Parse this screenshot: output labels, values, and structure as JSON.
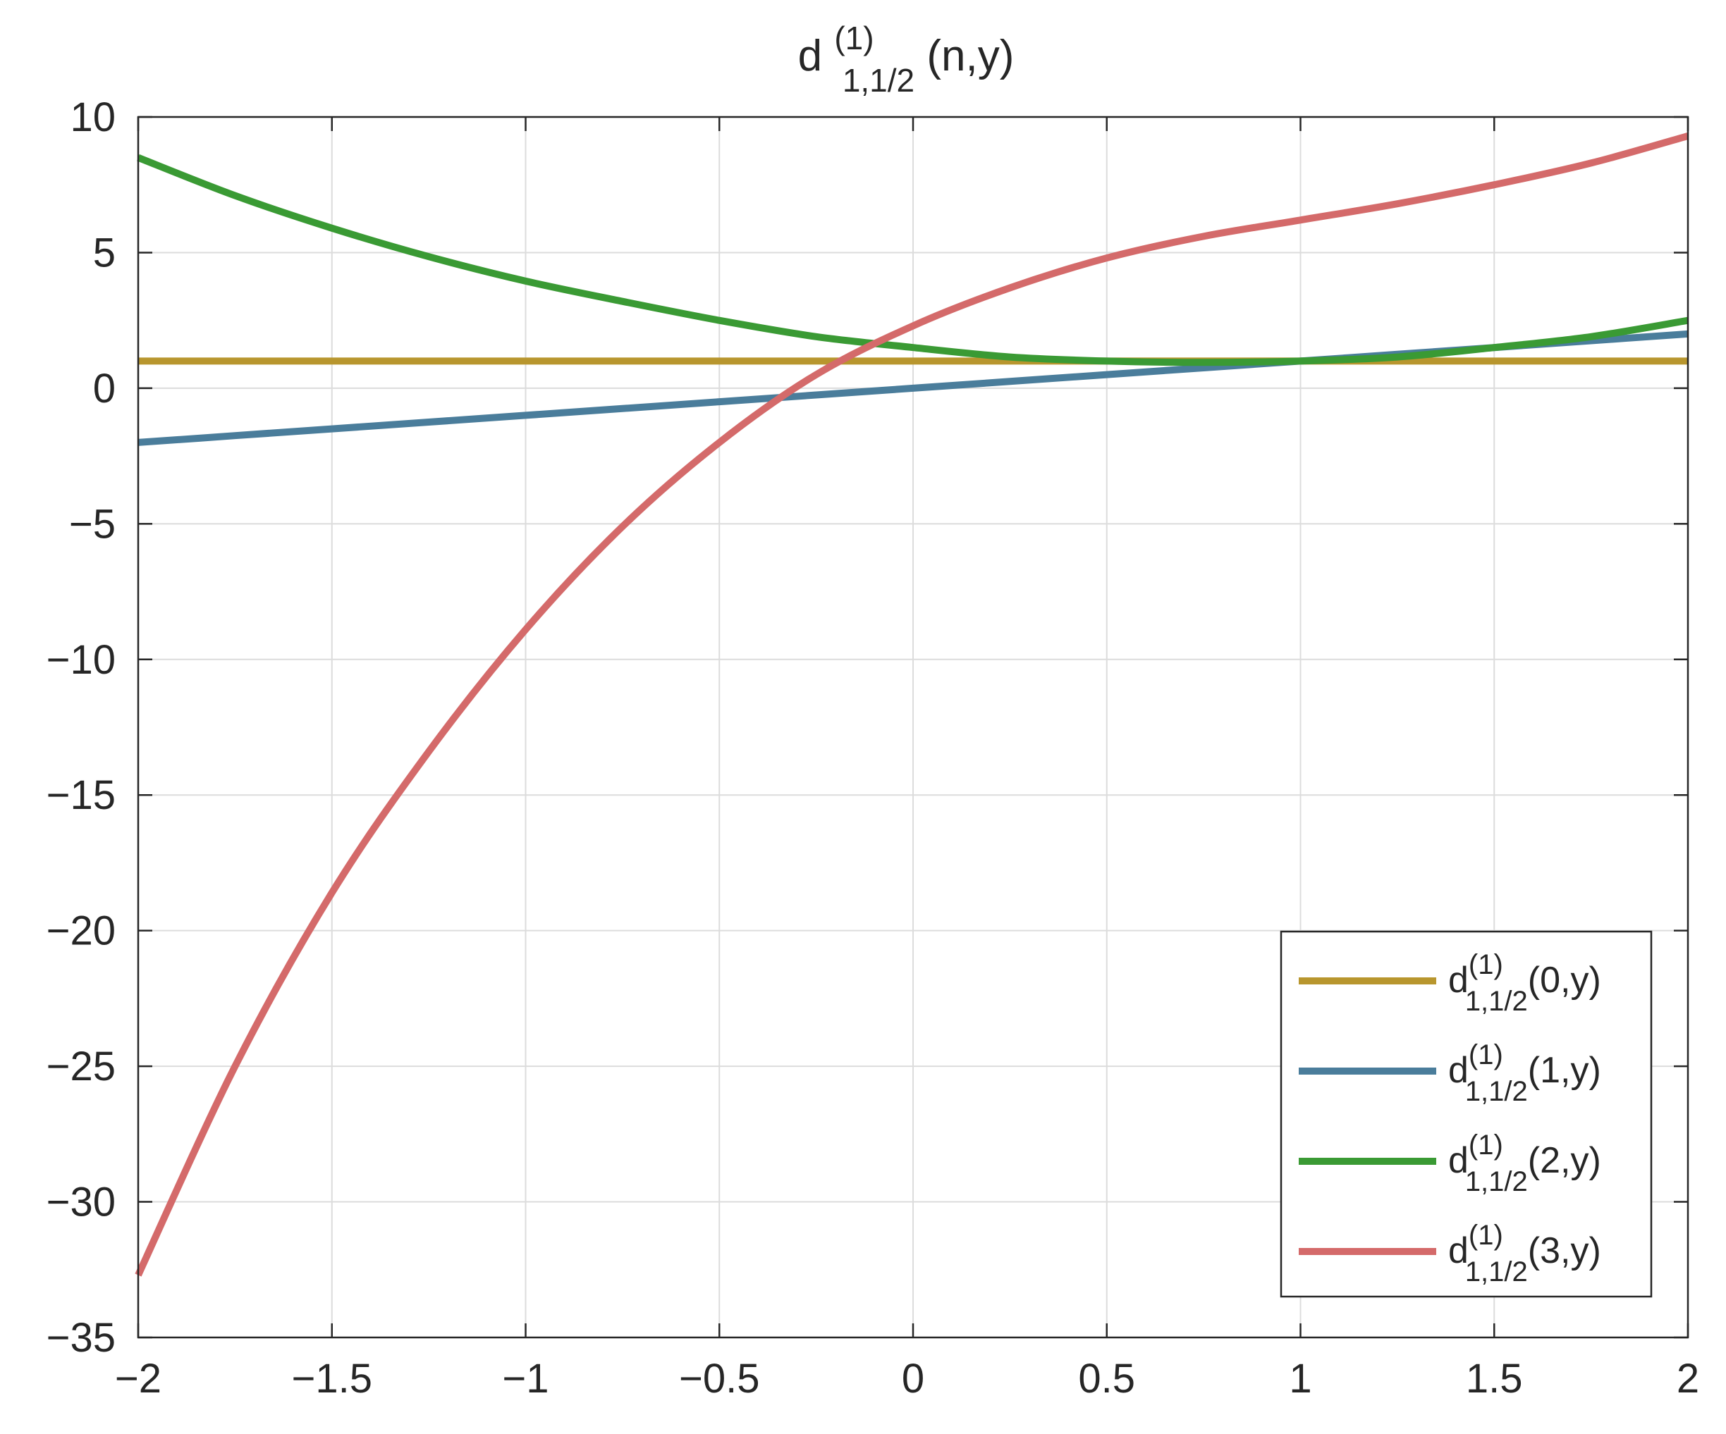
{
  "chart_data": {
    "type": "line",
    "title": {
      "base": "d",
      "superscript": "(1)",
      "subscript": "1,1/2",
      "suffix": "(n,y)"
    },
    "xlabel": "",
    "ylabel": "",
    "xlim": [
      -2,
      2
    ],
    "ylim": [
      -35,
      10
    ],
    "x_ticks": [
      -2,
      -1.5,
      -1,
      -0.5,
      0,
      0.5,
      1,
      1.5,
      2
    ],
    "x_tick_labels": [
      "−2",
      "−1.5",
      "−1",
      "−0.5",
      "0",
      "0.5",
      "1",
      "1.5",
      "2"
    ],
    "y_ticks": [
      10,
      5,
      0,
      -5,
      -10,
      -15,
      -20,
      -25,
      -30,
      -35
    ],
    "y_tick_labels": [
      "10",
      "5",
      "0",
      "−5",
      "−10",
      "−15",
      "−20",
      "−25",
      "−30",
      "−35"
    ],
    "grid": true,
    "legend_position": "bottom-right",
    "x": [
      -2,
      -1.75,
      -1.5,
      -1.25,
      -1,
      -0.75,
      -0.5,
      -0.25,
      0,
      0.25,
      0.5,
      0.75,
      1,
      1.25,
      1.5,
      1.75,
      2
    ],
    "series": [
      {
        "name": {
          "base": "d",
          "superscript": "(1)",
          "subscript": "1,1/2",
          "suffix": "(0,y)"
        },
        "color": "#b8962e",
        "values": [
          1,
          1,
          1,
          1,
          1,
          1,
          1,
          1,
          1,
          1,
          1,
          1,
          1,
          1,
          1,
          1,
          1
        ]
      },
      {
        "name": {
          "base": "d",
          "superscript": "(1)",
          "subscript": "1,1/2",
          "suffix": "(1,y)"
        },
        "color": "#4a7d9b",
        "values": [
          -2,
          -1.75,
          -1.5,
          -1.25,
          -1,
          -0.75,
          -0.5,
          -0.25,
          0,
          0.25,
          0.5,
          0.75,
          1,
          1.25,
          1.5,
          1.75,
          2
        ]
      },
      {
        "name": {
          "base": "d",
          "superscript": "(1)",
          "subscript": "1,1/2",
          "suffix": "(2,y)"
        },
        "color": "#3a9a34",
        "values": [
          8.5,
          7.1,
          5.9,
          4.85,
          3.95,
          3.2,
          2.5,
          1.9,
          1.5,
          1.15,
          1,
          0.95,
          1,
          1.15,
          1.5,
          1.9,
          2.5
        ]
      },
      {
        "name": {
          "base": "d",
          "superscript": "(1)",
          "subscript": "1,1/2",
          "suffix": "(3,y)"
        },
        "color": "#d46a6a",
        "values": [
          -32.7,
          -25,
          -18.6,
          -13.4,
          -8.9,
          -5.1,
          -2,
          0.5,
          2.3,
          3.7,
          4.8,
          5.6,
          6.2,
          6.8,
          7.5,
          8.3,
          9.3
        ]
      }
    ]
  }
}
